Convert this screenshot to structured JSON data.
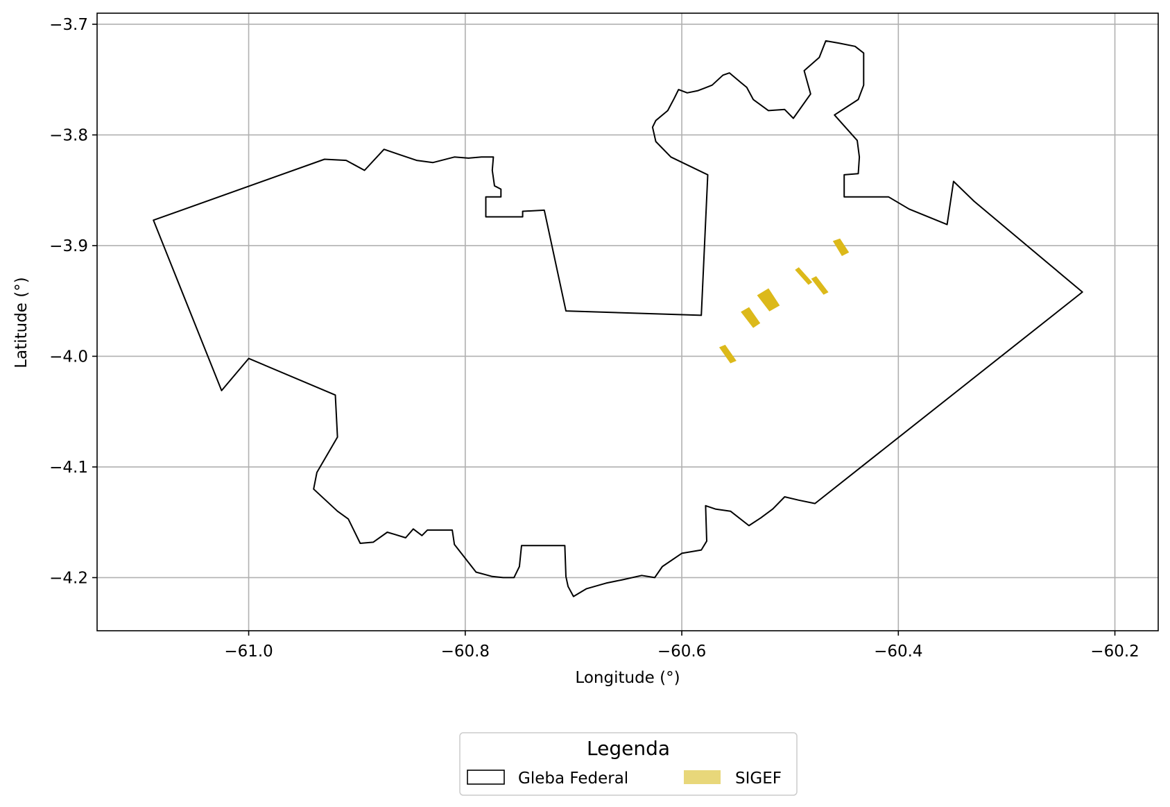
{
  "chart_data": {
    "type": "map",
    "title": "",
    "xlabel": "Longitude (°)",
    "ylabel": "Latitude (°)",
    "xlim": [
      -61.14,
      -60.16
    ],
    "ylim": [
      -4.248,
      -3.69
    ],
    "grid": true,
    "x_ticks": [
      {
        "value": -61.0,
        "label": "−61.0"
      },
      {
        "value": -60.8,
        "label": "−60.8"
      },
      {
        "value": -60.6,
        "label": "−60.6"
      },
      {
        "value": -60.4,
        "label": "−60.4"
      },
      {
        "value": -60.2,
        "label": "−60.2"
      }
    ],
    "y_ticks": [
      {
        "value": -3.7,
        "label": "−3.7"
      },
      {
        "value": -3.8,
        "label": "−3.8"
      },
      {
        "value": -3.9,
        "label": "−3.9"
      },
      {
        "value": -4.0,
        "label": "−4.0"
      },
      {
        "value": -4.1,
        "label": "−4.1"
      },
      {
        "value": -4.2,
        "label": "−4.2"
      }
    ],
    "legend": {
      "title": "Legenda",
      "placement": "below-center",
      "entries": [
        {
          "label": "Gleba Federal",
          "style": "outline",
          "color": "#000000"
        },
        {
          "label": "SIGEF",
          "style": "fill",
          "color": "#e8d77a"
        }
      ]
    },
    "layers": [
      {
        "name": "Gleba Federal",
        "style": "outline",
        "stroke": "#000000",
        "coordinates": [
          [
            -61.088,
            -3.877
          ],
          [
            -60.93,
            -3.822
          ],
          [
            -60.91,
            -3.823
          ],
          [
            -60.893,
            -3.832
          ],
          [
            -60.875,
            -3.813
          ],
          [
            -60.86,
            -3.818
          ],
          [
            -60.845,
            -3.823
          ],
          [
            -60.83,
            -3.825
          ],
          [
            -60.81,
            -3.82
          ],
          [
            -60.797,
            -3.821
          ],
          [
            -60.785,
            -3.82
          ],
          [
            -60.774,
            -3.82
          ],
          [
            -60.775,
            -3.832
          ],
          [
            -60.773,
            -3.846
          ],
          [
            -60.767,
            -3.849
          ],
          [
            -60.767,
            -3.856
          ],
          [
            -60.781,
            -3.856
          ],
          [
            -60.781,
            -3.874
          ],
          [
            -60.747,
            -3.874
          ],
          [
            -60.747,
            -3.869
          ],
          [
            -60.727,
            -3.868
          ],
          [
            -60.707,
            -3.959
          ],
          [
            -60.582,
            -3.963
          ],
          [
            -60.576,
            -3.836
          ],
          [
            -60.61,
            -3.82
          ],
          [
            -60.624,
            -3.806
          ],
          [
            -60.627,
            -3.793
          ],
          [
            -60.624,
            -3.787
          ],
          [
            -60.613,
            -3.778
          ],
          [
            -60.607,
            -3.767
          ],
          [
            -60.603,
            -3.759
          ],
          [
            -60.595,
            -3.762
          ],
          [
            -60.585,
            -3.76
          ],
          [
            -60.572,
            -3.755
          ],
          [
            -60.562,
            -3.746
          ],
          [
            -60.556,
            -3.744
          ],
          [
            -60.545,
            -3.753
          ],
          [
            -60.54,
            -3.757
          ],
          [
            -60.534,
            -3.768
          ],
          [
            -60.52,
            -3.778
          ],
          [
            -60.505,
            -3.777
          ],
          [
            -60.497,
            -3.785
          ],
          [
            -60.481,
            -3.763
          ],
          [
            -60.487,
            -3.742
          ],
          [
            -60.473,
            -3.73
          ],
          [
            -60.467,
            -3.715
          ],
          [
            -60.455,
            -3.717
          ],
          [
            -60.44,
            -3.72
          ],
          [
            -60.432,
            -3.726
          ],
          [
            -60.432,
            -3.74
          ],
          [
            -60.432,
            -3.755
          ],
          [
            -60.437,
            -3.768
          ],
          [
            -60.459,
            -3.782
          ],
          [
            -60.438,
            -3.805
          ],
          [
            -60.436,
            -3.82
          ],
          [
            -60.437,
            -3.835
          ],
          [
            -60.45,
            -3.836
          ],
          [
            -60.45,
            -3.856
          ],
          [
            -60.409,
            -3.856
          ],
          [
            -60.39,
            -3.867
          ],
          [
            -60.355,
            -3.881
          ],
          [
            -60.349,
            -3.842
          ],
          [
            -60.33,
            -3.86
          ],
          [
            -60.23,
            -3.942
          ],
          [
            -60.477,
            -4.133
          ],
          [
            -60.492,
            -4.13
          ],
          [
            -60.505,
            -4.127
          ],
          [
            -60.516,
            -4.138
          ],
          [
            -60.527,
            -4.146
          ],
          [
            -60.538,
            -4.153
          ],
          [
            -60.555,
            -4.14
          ],
          [
            -60.569,
            -4.138
          ],
          [
            -60.578,
            -4.135
          ],
          [
            -60.577,
            -4.167
          ],
          [
            -60.582,
            -4.175
          ],
          [
            -60.6,
            -4.178
          ],
          [
            -60.618,
            -4.19
          ],
          [
            -60.625,
            -4.2
          ],
          [
            -60.637,
            -4.198
          ],
          [
            -60.655,
            -4.202
          ],
          [
            -60.67,
            -4.205
          ],
          [
            -60.688,
            -4.21
          ],
          [
            -60.7,
            -4.217
          ],
          [
            -60.705,
            -4.208
          ],
          [
            -60.707,
            -4.199
          ],
          [
            -60.708,
            -4.171
          ],
          [
            -60.748,
            -4.171
          ],
          [
            -60.75,
            -4.19
          ],
          [
            -60.755,
            -4.2
          ],
          [
            -60.765,
            -4.2
          ],
          [
            -60.775,
            -4.199
          ],
          [
            -60.79,
            -4.195
          ],
          [
            -60.81,
            -4.17
          ],
          [
            -60.812,
            -4.157
          ],
          [
            -60.835,
            -4.157
          ],
          [
            -60.84,
            -4.162
          ],
          [
            -60.848,
            -4.156
          ],
          [
            -60.855,
            -4.164
          ],
          [
            -60.865,
            -4.161
          ],
          [
            -60.872,
            -4.159
          ],
          [
            -60.885,
            -4.168
          ],
          [
            -60.897,
            -4.169
          ],
          [
            -60.908,
            -4.147
          ],
          [
            -60.918,
            -4.14
          ],
          [
            -60.94,
            -4.12
          ],
          [
            -60.937,
            -4.105
          ],
          [
            -60.918,
            -4.073
          ],
          [
            -60.92,
            -4.035
          ],
          [
            -61.0,
            -4.002
          ],
          [
            -61.025,
            -4.031
          ],
          [
            -61.088,
            -3.877
          ]
        ]
      },
      {
        "name": "SIGEF",
        "style": "fill",
        "fill": "#dcb91a",
        "polygons": [
          [
            [
              -60.565,
              -3.992
            ],
            [
              -60.56,
              -3.99
            ],
            [
              -60.55,
              -4.004
            ],
            [
              -60.555,
              -4.006
            ]
          ],
          [
            [
              -60.545,
              -3.96
            ],
            [
              -60.538,
              -3.956
            ],
            [
              -60.528,
              -3.97
            ],
            [
              -60.534,
              -3.974
            ]
          ],
          [
            [
              -60.53,
              -3.945
            ],
            [
              -60.52,
              -3.939
            ],
            [
              -60.51,
              -3.954
            ],
            [
              -60.519,
              -3.959
            ]
          ],
          [
            [
              -60.495,
              -3.922
            ],
            [
              -60.492,
              -3.92
            ],
            [
              -60.48,
              -3.933
            ],
            [
              -60.483,
              -3.935
            ]
          ],
          [
            [
              -60.48,
              -3.93
            ],
            [
              -60.476,
              -3.928
            ],
            [
              -60.465,
              -3.942
            ],
            [
              -60.469,
              -3.944
            ]
          ],
          [
            [
              -60.46,
              -3.896
            ],
            [
              -60.454,
              -3.894
            ],
            [
              -60.446,
              -3.906
            ],
            [
              -60.452,
              -3.909
            ]
          ]
        ]
      }
    ]
  }
}
